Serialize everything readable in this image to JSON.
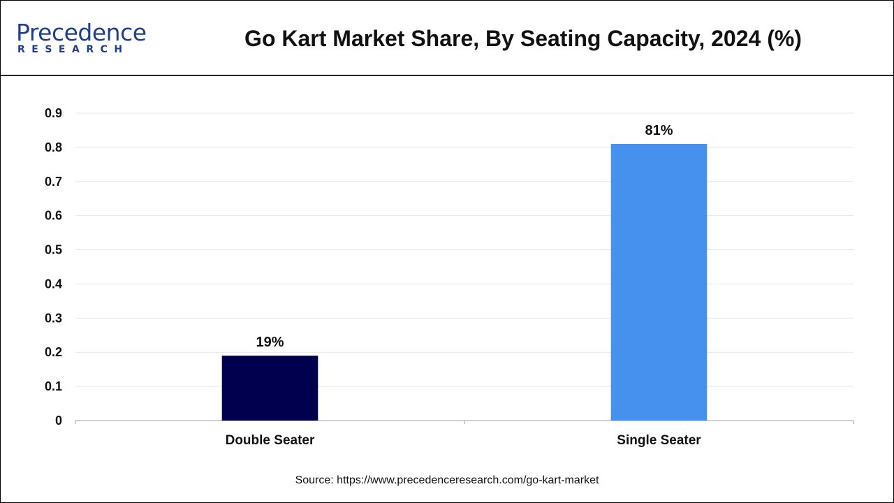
{
  "brand": {
    "name_main": "Precedence",
    "name_sub": "RESEARCH",
    "color": "#1f3f8a"
  },
  "header": {
    "title": "Go Kart Market Share, By Seating Capacity, 2024 (%)"
  },
  "footer": {
    "source": "Source: https://www.precedenceresearch.com/go-kart-market"
  },
  "chart_data": {
    "type": "bar",
    "title": "Go Kart Market Share, By Seating Capacity, 2024 (%)",
    "xlabel": "",
    "ylabel": "",
    "categories": [
      "Double Seater",
      "Single Seater"
    ],
    "values": [
      0.19,
      0.81
    ],
    "data_labels": [
      "19%",
      "81%"
    ],
    "colors": [
      "#00004f",
      "#4791ee"
    ],
    "ylim": [
      0,
      0.9
    ],
    "yticks": [
      0,
      0.1,
      0.2,
      0.3,
      0.4,
      0.5,
      0.6,
      0.7,
      0.8,
      0.9
    ],
    "ytick_labels": [
      "0",
      "0.1",
      "0.2",
      "0.3",
      "0.4",
      "0.5",
      "0.6",
      "0.7",
      "0.8",
      "0.9"
    ],
    "grid": true,
    "legend": "none"
  }
}
